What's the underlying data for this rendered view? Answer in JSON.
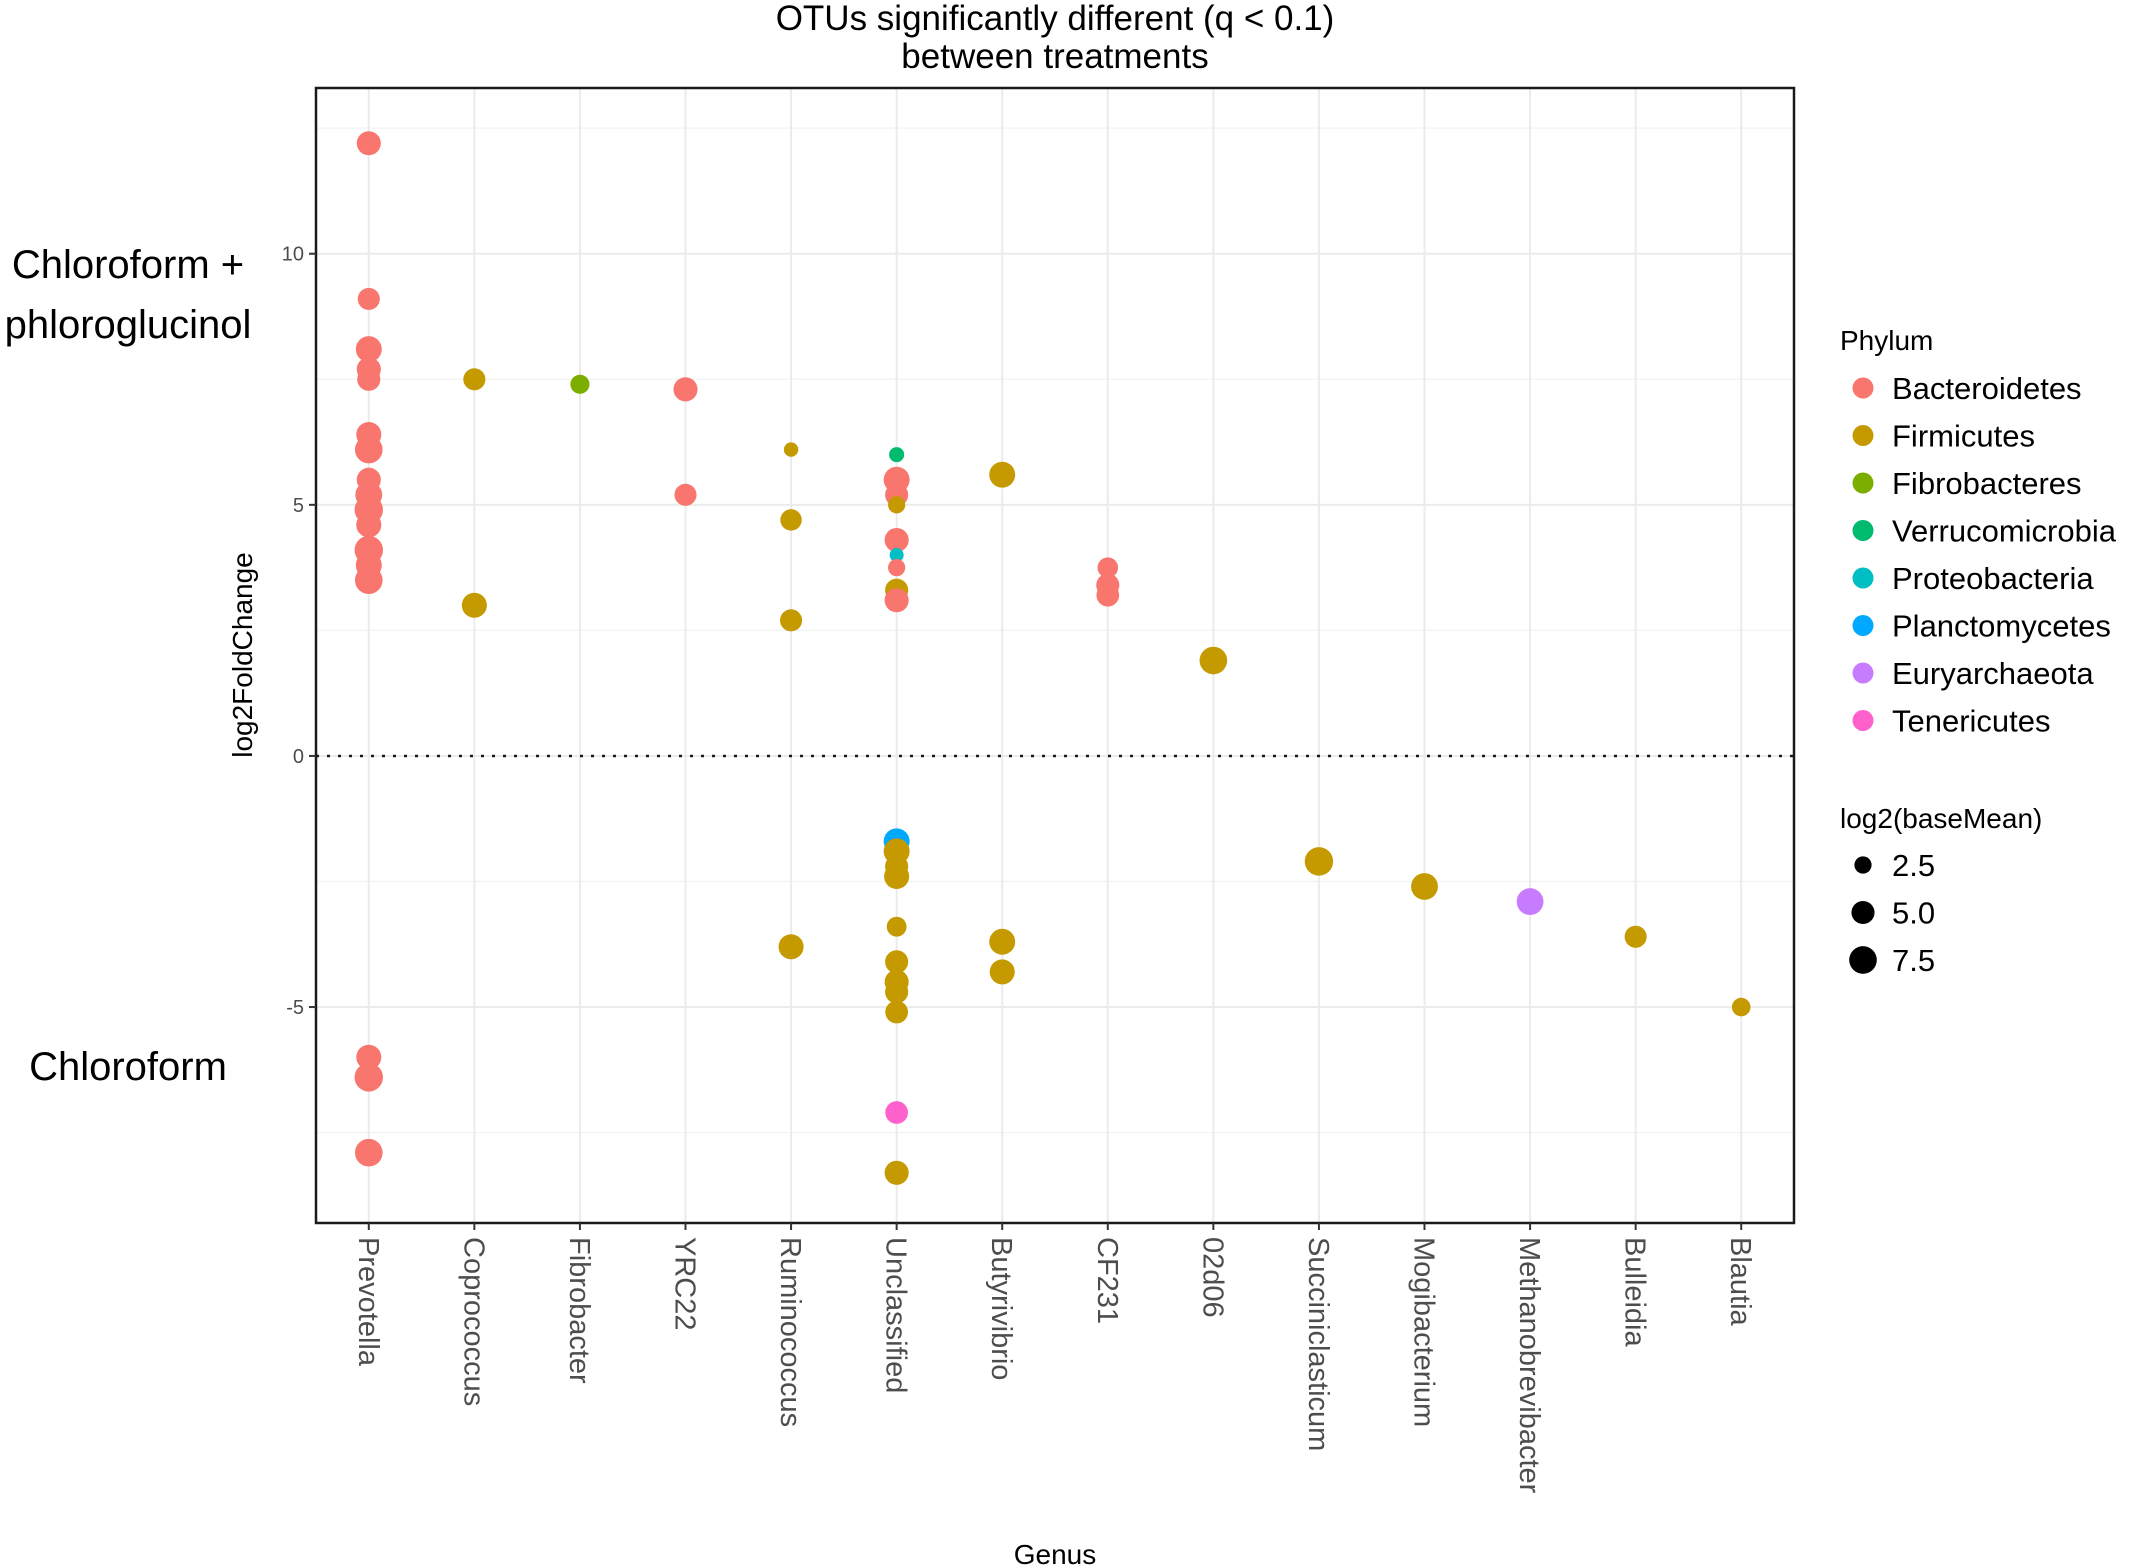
{
  "chart_data": {
    "type": "scatter",
    "title": "OTUs significantly different (q < 0.1)",
    "subtitle": "between treatments",
    "xlabel": "Genus",
    "ylabel": "log2FoldChange",
    "ylim": [
      -9.3,
      13.3
    ],
    "yticks": [
      "-5",
      "0",
      "5",
      "10"
    ],
    "yticks_values": [
      -5,
      0,
      5,
      10
    ],
    "categories": [
      "Prevotella",
      "Coprococcus",
      "Fibrobacter",
      "YRC22",
      "Ruminococcus",
      "Unclassified",
      "Butyrivibrio",
      "CF231",
      "02d06",
      "Succiniclasticum",
      "Mogibacterium",
      "Methanobrevibacter",
      "Bulleidia",
      "Blautia"
    ],
    "reference_line": 0,
    "group_labels": {
      "upper_line1": "Chloroform +",
      "upper_line2": "phloroglucinol",
      "lower": "Chloroform"
    },
    "phylum_legend": {
      "title": "Phylum",
      "items": [
        {
          "name": "Bacteroidetes",
          "color": "#F8766D"
        },
        {
          "name": "Firmicutes",
          "color": "#C49A00"
        },
        {
          "name": "Fibrobacteres",
          "color": "#7CAE00"
        },
        {
          "name": "Verrucomicrobia",
          "color": "#00BA6E"
        },
        {
          "name": "Proteobacteria",
          "color": "#00BFC4"
        },
        {
          "name": "Planctomycetes",
          "color": "#00A9FF"
        },
        {
          "name": "Euryarchaeota",
          "color": "#C77CFF"
        },
        {
          "name": "Tenericutes",
          "color": "#FF61CC"
        }
      ]
    },
    "size_legend": {
      "title": "log2(baseMean)",
      "items": [
        {
          "label": "2.5",
          "value": 2.5
        },
        {
          "label": "5.0",
          "value": 5.0
        },
        {
          "label": "7.5",
          "value": 7.5
        }
      ]
    },
    "points": [
      {
        "genus": "Prevotella",
        "y": 12.2,
        "phylum": "Bacteroidetes",
        "size": 5.5
      },
      {
        "genus": "Prevotella",
        "y": 9.1,
        "phylum": "Bacteroidetes",
        "size": 4.5
      },
      {
        "genus": "Prevotella",
        "y": 8.1,
        "phylum": "Bacteroidetes",
        "size": 6.5
      },
      {
        "genus": "Prevotella",
        "y": 7.7,
        "phylum": "Bacteroidetes",
        "size": 5.5
      },
      {
        "genus": "Prevotella",
        "y": 7.5,
        "phylum": "Bacteroidetes",
        "size": 5.0
      },
      {
        "genus": "Prevotella",
        "y": 6.4,
        "phylum": "Bacteroidetes",
        "size": 6.0
      },
      {
        "genus": "Prevotella",
        "y": 6.1,
        "phylum": "Bacteroidetes",
        "size": 7.5
      },
      {
        "genus": "Prevotella",
        "y": 5.5,
        "phylum": "Bacteroidetes",
        "size": 5.5
      },
      {
        "genus": "Prevotella",
        "y": 5.2,
        "phylum": "Bacteroidetes",
        "size": 7.0
      },
      {
        "genus": "Prevotella",
        "y": 4.9,
        "phylum": "Bacteroidetes",
        "size": 8.0
      },
      {
        "genus": "Prevotella",
        "y": 4.6,
        "phylum": "Bacteroidetes",
        "size": 6.0
      },
      {
        "genus": "Prevotella",
        "y": 4.1,
        "phylum": "Bacteroidetes",
        "size": 8.0
      },
      {
        "genus": "Prevotella",
        "y": 3.8,
        "phylum": "Bacteroidetes",
        "size": 6.5
      },
      {
        "genus": "Prevotella",
        "y": 3.5,
        "phylum": "Bacteroidetes",
        "size": 7.5
      },
      {
        "genus": "Prevotella",
        "y": -6.0,
        "phylum": "Bacteroidetes",
        "size": 6.0
      },
      {
        "genus": "Prevotella",
        "y": -6.4,
        "phylum": "Bacteroidetes",
        "size": 8.0
      },
      {
        "genus": "Prevotella",
        "y": -7.9,
        "phylum": "Bacteroidetes",
        "size": 7.5
      },
      {
        "genus": "Coprococcus",
        "y": 7.5,
        "phylum": "Firmicutes",
        "size": 4.5
      },
      {
        "genus": "Coprococcus",
        "y": 3.0,
        "phylum": "Firmicutes",
        "size": 6.0
      },
      {
        "genus": "Fibrobacter",
        "y": 7.4,
        "phylum": "Fibrobacteres",
        "size": 3.2
      },
      {
        "genus": "YRC22",
        "y": 7.3,
        "phylum": "Bacteroidetes",
        "size": 5.5
      },
      {
        "genus": "YRC22",
        "y": 5.2,
        "phylum": "Bacteroidetes",
        "size": 4.5
      },
      {
        "genus": "Ruminococcus",
        "y": 6.1,
        "phylum": "Firmicutes",
        "size": 1.6
      },
      {
        "genus": "Ruminococcus",
        "y": 4.7,
        "phylum": "Firmicutes",
        "size": 4.2
      },
      {
        "genus": "Ruminococcus",
        "y": 2.7,
        "phylum": "Firmicutes",
        "size": 4.5
      },
      {
        "genus": "Ruminococcus",
        "y": -3.8,
        "phylum": "Firmicutes",
        "size": 6.0
      },
      {
        "genus": "Unclassified",
        "y": 6.0,
        "phylum": "Verrucomicrobia",
        "size": 1.8
      },
      {
        "genus": "Unclassified",
        "y": 5.5,
        "phylum": "Bacteroidetes",
        "size": 6.5
      },
      {
        "genus": "Unclassified",
        "y": 5.2,
        "phylum": "Bacteroidetes",
        "size": 5.0
      },
      {
        "genus": "Unclassified",
        "y": 5.0,
        "phylum": "Firmicutes",
        "size": 2.5
      },
      {
        "genus": "Unclassified",
        "y": 4.3,
        "phylum": "Bacteroidetes",
        "size": 5.5
      },
      {
        "genus": "Unclassified",
        "y": 4.0,
        "phylum": "Proteobacteria",
        "size": 1.5
      },
      {
        "genus": "Unclassified",
        "y": 3.75,
        "phylum": "Bacteroidetes",
        "size": 2.5
      },
      {
        "genus": "Unclassified",
        "y": 3.3,
        "phylum": "Firmicutes",
        "size": 5.0
      },
      {
        "genus": "Unclassified",
        "y": 3.1,
        "phylum": "Bacteroidetes",
        "size": 5.5
      },
      {
        "genus": "Unclassified",
        "y": -1.7,
        "phylum": "Planctomycetes",
        "size": 6.5
      },
      {
        "genus": "Unclassified",
        "y": -1.9,
        "phylum": "Firmicutes",
        "size": 6.5
      },
      {
        "genus": "Unclassified",
        "y": -2.2,
        "phylum": "Firmicutes",
        "size": 5.0
      },
      {
        "genus": "Unclassified",
        "y": -2.4,
        "phylum": "Firmicutes",
        "size": 6.0
      },
      {
        "genus": "Unclassified",
        "y": -3.4,
        "phylum": "Firmicutes",
        "size": 3.5
      },
      {
        "genus": "Unclassified",
        "y": -4.1,
        "phylum": "Firmicutes",
        "size": 5.0
      },
      {
        "genus": "Unclassified",
        "y": -4.5,
        "phylum": "Firmicutes",
        "size": 5.5
      },
      {
        "genus": "Unclassified",
        "y": -4.7,
        "phylum": "Firmicutes",
        "size": 5.0
      },
      {
        "genus": "Unclassified",
        "y": -5.1,
        "phylum": "Firmicutes",
        "size": 4.8
      },
      {
        "genus": "Unclassified",
        "y": -7.1,
        "phylum": "Tenericutes",
        "size": 4.8
      },
      {
        "genus": "Unclassified",
        "y": -8.3,
        "phylum": "Firmicutes",
        "size": 5.5
      },
      {
        "genus": "Butyrivibrio",
        "y": 5.6,
        "phylum": "Firmicutes",
        "size": 6.5
      },
      {
        "genus": "Butyrivibrio",
        "y": -3.7,
        "phylum": "Firmicutes",
        "size": 6.5
      },
      {
        "genus": "Butyrivibrio",
        "y": -4.3,
        "phylum": "Firmicutes",
        "size": 6.0
      },
      {
        "genus": "CF231",
        "y": 3.75,
        "phylum": "Bacteroidetes",
        "size": 3.8
      },
      {
        "genus": "CF231",
        "y": 3.4,
        "phylum": "Bacteroidetes",
        "size": 5.0
      },
      {
        "genus": "CF231",
        "y": 3.2,
        "phylum": "Bacteroidetes",
        "size": 4.8
      },
      {
        "genus": "02d06",
        "y": 1.9,
        "phylum": "Firmicutes",
        "size": 7.5
      },
      {
        "genus": "Succiniclasticum",
        "y": -2.1,
        "phylum": "Firmicutes",
        "size": 8.0
      },
      {
        "genus": "Mogibacterium",
        "y": -2.6,
        "phylum": "Firmicutes",
        "size": 7.0
      },
      {
        "genus": "Methanobrevibacter",
        "y": -2.9,
        "phylum": "Euryarchaeota",
        "size": 7.0
      },
      {
        "genus": "Bulleidia",
        "y": -3.6,
        "phylum": "Firmicutes",
        "size": 4.5
      },
      {
        "genus": "Blautia",
        "y": -5.0,
        "phylum": "Firmicutes",
        "size": 3.0
      }
    ]
  }
}
